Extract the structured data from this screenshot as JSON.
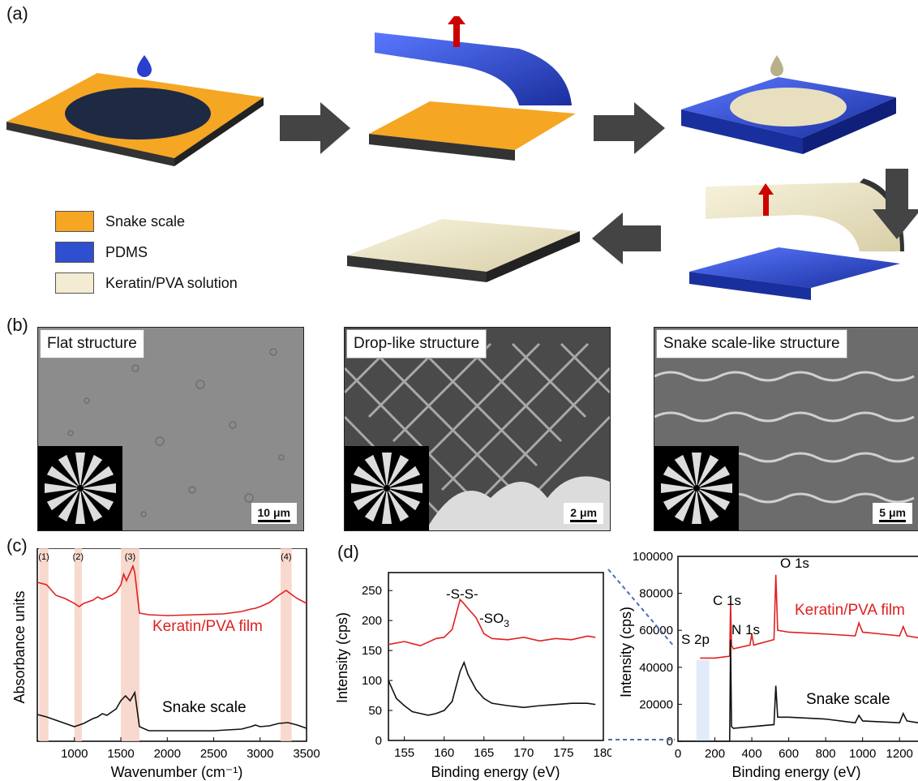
{
  "panels": {
    "a": "(a)",
    "b": "(b)",
    "c": "(c)",
    "d": "(d)"
  },
  "legend": [
    {
      "label": "Snake scale",
      "color": "#f5a623"
    },
    {
      "label": "PDMS",
      "color": "#2f4fd0"
    },
    {
      "label": "Keratin/PVA solution",
      "color": "#f3ecd2"
    }
  ],
  "sem": [
    {
      "title": "Flat structure",
      "scale": "10 μm"
    },
    {
      "title": "Drop-like structure",
      "scale": "2 μm"
    },
    {
      "title": "Snake scale-like structure",
      "scale": "5 μm"
    }
  ],
  "chart_data": [
    {
      "type": "line",
      "xlabel": "Wavenumber (cm⁻¹)",
      "ylabel": "Absorbance units",
      "xlim": [
        600,
        3500
      ],
      "xticks": [
        "1000",
        "1500",
        "2000",
        "2500",
        "3000",
        "3500"
      ],
      "bands": [
        {
          "label": "(1)",
          "range": [
            620,
            720
          ]
        },
        {
          "label": "(2)",
          "range": [
            1000,
            1080
          ]
        },
        {
          "label": "(3)",
          "range": [
            1500,
            1700
          ]
        },
        {
          "label": "(4)",
          "range": [
            3220,
            3340
          ]
        }
      ],
      "series": [
        {
          "name": "Keratin/PVA film",
          "color": "#e02020",
          "x": [
            600,
            700,
            800,
            900,
            1000,
            1050,
            1100,
            1200,
            1250,
            1300,
            1400,
            1450,
            1500,
            1530,
            1560,
            1600,
            1630,
            1650,
            1680,
            1700,
            1800,
            2000,
            2300,
            2600,
            2800,
            2900,
            2950,
            3000,
            3100,
            3200,
            3280,
            3350,
            3400,
            3500
          ],
          "y": [
            0.78,
            0.75,
            0.62,
            0.58,
            0.52,
            0.48,
            0.52,
            0.56,
            0.6,
            0.57,
            0.62,
            0.66,
            0.75,
            0.88,
            0.8,
            0.9,
            0.98,
            0.9,
            0.6,
            0.4,
            0.38,
            0.37,
            0.38,
            0.39,
            0.42,
            0.45,
            0.46,
            0.48,
            0.53,
            0.62,
            0.68,
            0.62,
            0.58,
            0.52
          ]
        },
        {
          "name": "Snake scale",
          "color": "#111111",
          "x": [
            600,
            700,
            800,
            900,
            1000,
            1050,
            1100,
            1200,
            1250,
            1300,
            1350,
            1400,
            1450,
            1500,
            1550,
            1600,
            1650,
            1700,
            1800,
            2000,
            2500,
            2800,
            2900,
            2950,
            3000,
            3100,
            3200,
            3300,
            3400,
            3500
          ],
          "y": [
            0.25,
            0.22,
            0.18,
            0.14,
            0.1,
            0.12,
            0.14,
            0.2,
            0.22,
            0.26,
            0.24,
            0.28,
            0.32,
            0.42,
            0.48,
            0.42,
            0.52,
            0.1,
            0.05,
            0.05,
            0.05,
            0.07,
            0.1,
            0.12,
            0.1,
            0.11,
            0.14,
            0.15,
            0.12,
            0.08
          ]
        }
      ]
    },
    {
      "type": "line",
      "xlabel": "Binding energy (eV)",
      "ylabel": "Intensity (cps)",
      "xlim": [
        153,
        180
      ],
      "ylim": [
        0,
        280
      ],
      "xticks": [
        "155",
        "160",
        "165",
        "170",
        "175",
        "180"
      ],
      "yticks": [
        "0",
        "50",
        "100",
        "150",
        "200",
        "250"
      ],
      "annotations": [
        "-S-S-",
        "-SO",
        "3"
      ],
      "series": [
        {
          "name": "Keratin/PVA film",
          "color": "#e02020",
          "x": [
            153,
            155,
            157,
            159,
            160,
            161,
            162,
            162.5,
            163,
            164,
            165,
            166,
            168,
            170,
            172,
            174,
            176,
            178,
            179
          ],
          "y": [
            160,
            165,
            158,
            170,
            172,
            185,
            235,
            228,
            220,
            205,
            178,
            170,
            168,
            172,
            166,
            170,
            168,
            174,
            172
          ]
        },
        {
          "name": "Snake scale",
          "color": "#111111",
          "x": [
            153,
            153.5,
            154,
            155,
            156,
            157,
            158,
            159,
            160,
            161,
            162,
            162.5,
            163,
            164,
            165,
            166,
            168,
            170,
            172,
            174,
            176,
            178,
            179
          ],
          "y": [
            100,
            85,
            70,
            58,
            48,
            45,
            42,
            45,
            50,
            65,
            115,
            130,
            110,
            85,
            70,
            62,
            58,
            55,
            58,
            60,
            62,
            62,
            60
          ]
        }
      ]
    },
    {
      "type": "line",
      "xlabel": "Binding energy (eV)",
      "ylabel": "Intensity (cps)",
      "xlim": [
        0,
        1300
      ],
      "ylim": [
        0,
        100000
      ],
      "xticks": [
        "0",
        "200",
        "400",
        "600",
        "800",
        "1000",
        "1200"
      ],
      "yticks": [
        "0",
        "20000",
        "40000",
        "60000",
        "80000",
        "100000"
      ],
      "annotations": [
        "O 1s",
        "C 1s",
        "N 1s",
        "S 2p"
      ],
      "series": [
        {
          "name": "Keratin/PVA film",
          "color": "#e02020",
          "x": [
            120,
            200,
            280,
            285,
            290,
            300,
            390,
            400,
            410,
            520,
            530,
            540,
            600,
            800,
            960,
            980,
            1000,
            1100,
            1200,
            1220,
            1240,
            1300
          ],
          "y": [
            45000,
            45000,
            46000,
            75000,
            52000,
            50000,
            52000,
            58000,
            52000,
            55000,
            90000,
            60000,
            59000,
            58000,
            57000,
            64000,
            59000,
            58000,
            57000,
            62000,
            57000,
            56000
          ]
        },
        {
          "name": "Snake scale",
          "color": "#111111",
          "x": [
            0,
            100,
            200,
            280,
            285,
            290,
            300,
            520,
            530,
            540,
            600,
            800,
            960,
            980,
            1000,
            1200,
            1220,
            1240,
            1300
          ],
          "y": [
            0,
            0,
            0,
            0,
            55000,
            8000,
            7000,
            9000,
            30000,
            13000,
            13000,
            12000,
            10000,
            14000,
            11000,
            10000,
            15000,
            11000,
            10000
          ]
        }
      ]
    }
  ],
  "chart_labels": {
    "ftir_film": "Keratin/PVA film",
    "ftir_scale": "Snake scale",
    "survey_film": "Keratin/PVA film",
    "survey_scale": "Snake scale"
  }
}
